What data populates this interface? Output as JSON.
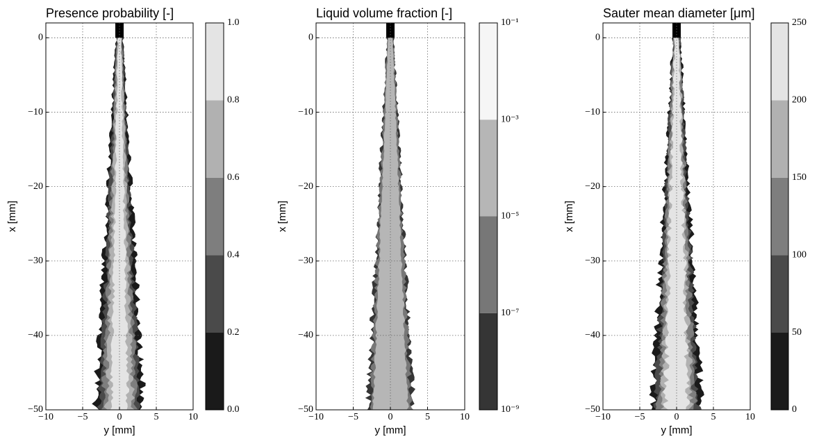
{
  "chart_data": [
    {
      "type": "contour",
      "title": "Presence probability [-]",
      "xlabel": "y [mm]",
      "ylabel": "x [mm]",
      "xlim": [
        -10,
        10
      ],
      "ylim": [
        -50,
        2
      ],
      "xticks": [
        {
          "value": -10,
          "label": "−10"
        },
        {
          "value": -5,
          "label": "−5"
        },
        0,
        5,
        10
      ],
      "yticks": [
        {
          "value": -50,
          "label": "−50"
        },
        {
          "value": -40,
          "label": "−40"
        },
        {
          "value": -30,
          "label": "−30"
        },
        {
          "value": -20,
          "label": "−20"
        },
        {
          "value": -10,
          "label": "−10"
        },
        0
      ],
      "grid": true,
      "colorbar": {
        "lim": [
          0,
          1
        ],
        "log": false,
        "ticks": [
          {
            "value": 0,
            "label": "0.0"
          },
          0.2,
          0.4,
          0.6,
          0.8,
          {
            "value": 1,
            "label": "1.0"
          }
        ],
        "colors": [
          "#1a1a1a",
          "#4a4a4a",
          "#7e7e7e",
          "#b1b1b1",
          "#e4e4e4"
        ]
      }
    },
    {
      "type": "contour",
      "title": "Liquid volume fraction [-]",
      "xlabel": "y [mm]",
      "ylabel": "x [mm]",
      "xlim": [
        -10,
        10
      ],
      "ylim": [
        -50,
        2
      ],
      "xticks": [
        {
          "value": -10,
          "label": "−10"
        },
        {
          "value": -5,
          "label": "−5"
        },
        0,
        5,
        10
      ],
      "yticks": [
        {
          "value": -50,
          "label": "−50"
        },
        {
          "value": -40,
          "label": "−40"
        },
        {
          "value": -30,
          "label": "−30"
        },
        {
          "value": -20,
          "label": "−20"
        },
        {
          "value": -10,
          "label": "−10"
        },
        0
      ],
      "grid": true,
      "colorbar": {
        "lim": [
          1e-09,
          0.1
        ],
        "log": true,
        "ticks": [
          {
            "value": 1e-09,
            "label": "10⁻⁹"
          },
          {
            "value": 1e-07,
            "label": "10⁻⁷"
          },
          {
            "value": 1e-05,
            "label": "10⁻⁵"
          },
          {
            "value": 0.001,
            "label": "10⁻³"
          },
          {
            "value": 0.1,
            "label": "10⁻¹"
          }
        ],
        "colors": [
          "#353535",
          "#777777",
          "#b6b6b6",
          "#f6f6f6"
        ]
      }
    },
    {
      "type": "contour",
      "title": "Sauter mean diameter [μm]",
      "xlabel": "y [mm]",
      "ylabel": "x [mm]",
      "xlim": [
        -10,
        10
      ],
      "ylim": [
        -50,
        2
      ],
      "xticks": [
        {
          "value": -10,
          "label": "−10"
        },
        {
          "value": -5,
          "label": "−5"
        },
        0,
        5,
        10
      ],
      "yticks": [
        {
          "value": -50,
          "label": "−50"
        },
        {
          "value": -40,
          "label": "−40"
        },
        {
          "value": -30,
          "label": "−30"
        },
        {
          "value": -20,
          "label": "−20"
        },
        {
          "value": -10,
          "label": "−10"
        },
        0
      ],
      "grid": true,
      "colorbar": {
        "lim": [
          0,
          250
        ],
        "log": false,
        "ticks": [
          0,
          50,
          100,
          150,
          200,
          250
        ],
        "colors": [
          "#1a1a1a",
          "#4a4a4a",
          "#7e7e7e",
          "#b1b1b1",
          "#e4e4e4"
        ]
      }
    }
  ]
}
